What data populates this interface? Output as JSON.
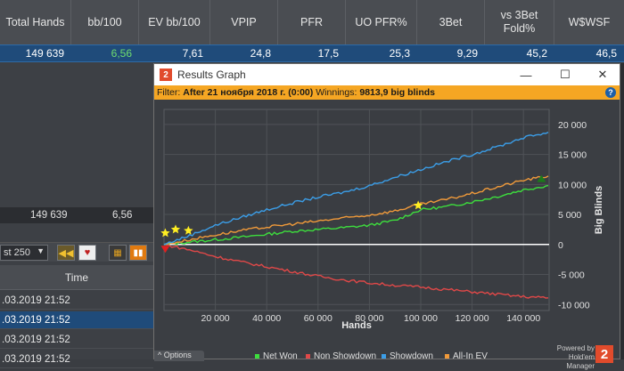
{
  "stats": {
    "columns": [
      "Total Hands",
      "bb/100",
      "EV bb/100",
      "VPIP",
      "PFR",
      "UO PFR%",
      "3Bet",
      "vs 3Bet Fold%",
      "W$WSF"
    ],
    "row": [
      "149 639",
      "6,56",
      "7,61",
      "24,8",
      "17,5",
      "25,3",
      "9,29",
      "45,2",
      "46,5"
    ]
  },
  "totals": {
    "hands": "149 639",
    "bb100": "6,56"
  },
  "toolbar": {
    "select_value": "st 250"
  },
  "sessions": {
    "header": "Time",
    "rows": [
      ".03.2019 21:52",
      ".03.2019 21:52",
      ".03.2019 21:52",
      ".03.2019 21:52"
    ]
  },
  "window": {
    "title": "Results Graph",
    "filter_label": "Filter:",
    "filter_value": "After 21 ноября 2018 г. (0:00)",
    "winnings_label": "Winnings:",
    "winnings_value": "9813,9 big blinds",
    "help": "?",
    "options": "Options",
    "powered_by": "Powered by",
    "brand": "Hold'em Manager",
    "brand_logo": "2"
  },
  "colors": {
    "net_won": "#3dde3d",
    "non_showdown": "#e04848",
    "showdown": "#3b9ee8",
    "all_in_ev": "#f09a3a",
    "marker_star": "#ffee22",
    "marker_start": "#e02020",
    "marker_end": "#1b7a1b"
  },
  "chart_data": {
    "type": "line",
    "xlabel": "Hands",
    "ylabel": "Big Blinds",
    "xlim": [
      0,
      150000
    ],
    "ylim": [
      -11000,
      22500
    ],
    "xticks": [
      20000,
      40000,
      60000,
      80000,
      100000,
      120000,
      140000
    ],
    "xtick_labels": [
      "20 000",
      "40 000",
      "60 000",
      "80 000",
      "100 000",
      "120 000",
      "140 000"
    ],
    "yticks": [
      -10000,
      -5000,
      0,
      5000,
      10000,
      15000,
      20000
    ],
    "ytick_labels": [
      "-10 000",
      "-5 000",
      "0",
      "5 000",
      "10 000",
      "15 000",
      "20 000"
    ],
    "grid": true,
    "legend": "bottom",
    "series": [
      {
        "name": "Net Won",
        "key": "net_won",
        "x": [
          0,
          10000,
          20000,
          30000,
          40000,
          50000,
          60000,
          70000,
          80000,
          90000,
          100000,
          110000,
          120000,
          130000,
          140000,
          149639
        ],
        "y": [
          0,
          400,
          800,
          1200,
          1700,
          2200,
          2500,
          2800,
          3200,
          4000,
          5800,
          6300,
          7100,
          8000,
          9100,
          9814
        ]
      },
      {
        "name": "Non Showdown",
        "key": "non_showdown",
        "x": [
          0,
          10000,
          20000,
          30000,
          40000,
          50000,
          60000,
          70000,
          80000,
          90000,
          100000,
          110000,
          120000,
          130000,
          140000,
          149639
        ],
        "y": [
          0,
          -900,
          -2000,
          -2900,
          -3700,
          -4500,
          -5300,
          -5900,
          -6400,
          -6800,
          -7100,
          -7500,
          -7900,
          -8300,
          -8700,
          -8900
        ]
      },
      {
        "name": "Showdown",
        "key": "showdown",
        "x": [
          0,
          10000,
          20000,
          30000,
          40000,
          50000,
          60000,
          70000,
          80000,
          90000,
          100000,
          110000,
          120000,
          130000,
          140000,
          149639
        ],
        "y": [
          0,
          1500,
          3200,
          4500,
          5800,
          6900,
          7900,
          8700,
          9800,
          11200,
          12500,
          13800,
          15000,
          16300,
          17800,
          18700
        ]
      },
      {
        "name": "All-In EV",
        "key": "all_in_ev",
        "x": [
          0,
          10000,
          20000,
          30000,
          40000,
          50000,
          60000,
          70000,
          80000,
          90000,
          100000,
          110000,
          120000,
          130000,
          140000,
          149639
        ],
        "y": [
          0,
          800,
          1600,
          2300,
          2900,
          3400,
          3900,
          4400,
          4900,
          5600,
          6700,
          7500,
          8500,
          9600,
          10700,
          11400
        ]
      }
    ],
    "markers": [
      {
        "type": "star",
        "x": 500,
        "y": 1900
      },
      {
        "type": "star",
        "x": 4500,
        "y": 2500
      },
      {
        "type": "star",
        "x": 9500,
        "y": 2300
      },
      {
        "type": "star",
        "x": 99000,
        "y": 6500
      },
      {
        "type": "start",
        "x": 500,
        "y": -800
      },
      {
        "type": "end",
        "x": 147000,
        "y": 11000
      }
    ]
  }
}
